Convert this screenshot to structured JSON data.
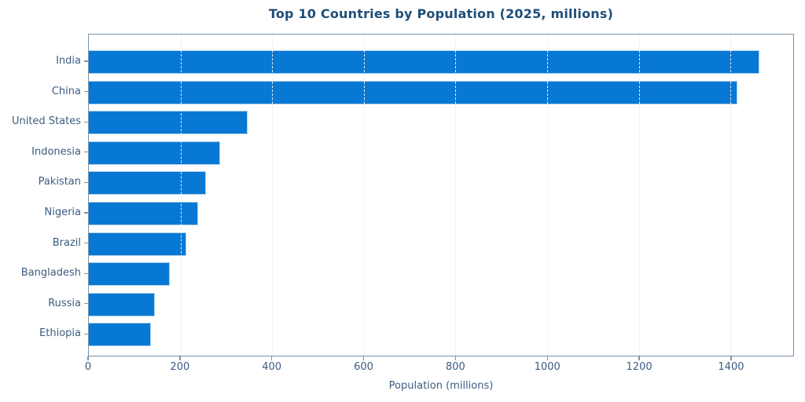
{
  "chart_data": {
    "type": "bar",
    "orientation": "horizontal",
    "title": "Top 10 Countries by Population (2025, millions)",
    "xlabel": "Population (millions)",
    "ylabel": "",
    "categories": [
      "India",
      "China",
      "United States",
      "Indonesia",
      "Pakistan",
      "Nigeria",
      "Brazil",
      "Bangladesh",
      "Russia",
      "Ethiopia"
    ],
    "values": [
      1464,
      1416,
      347,
      286,
      255,
      238,
      213,
      176,
      144,
      135
    ],
    "xlim": [
      0,
      1537
    ],
    "xticks": [
      0,
      200,
      400,
      600,
      800,
      1000,
      1200,
      1400
    ],
    "grid": "vertical-dashed-over-bars",
    "legend": "none",
    "colors": {
      "bar_fill": "#0778d4",
      "bar_edge": "#aecfec",
      "title_text": "#1f4e79",
      "tick_text": "#3b5c80",
      "axis_spine": "#7b93aa",
      "gridline": "#e9edf2",
      "background": "#ffffff"
    }
  }
}
